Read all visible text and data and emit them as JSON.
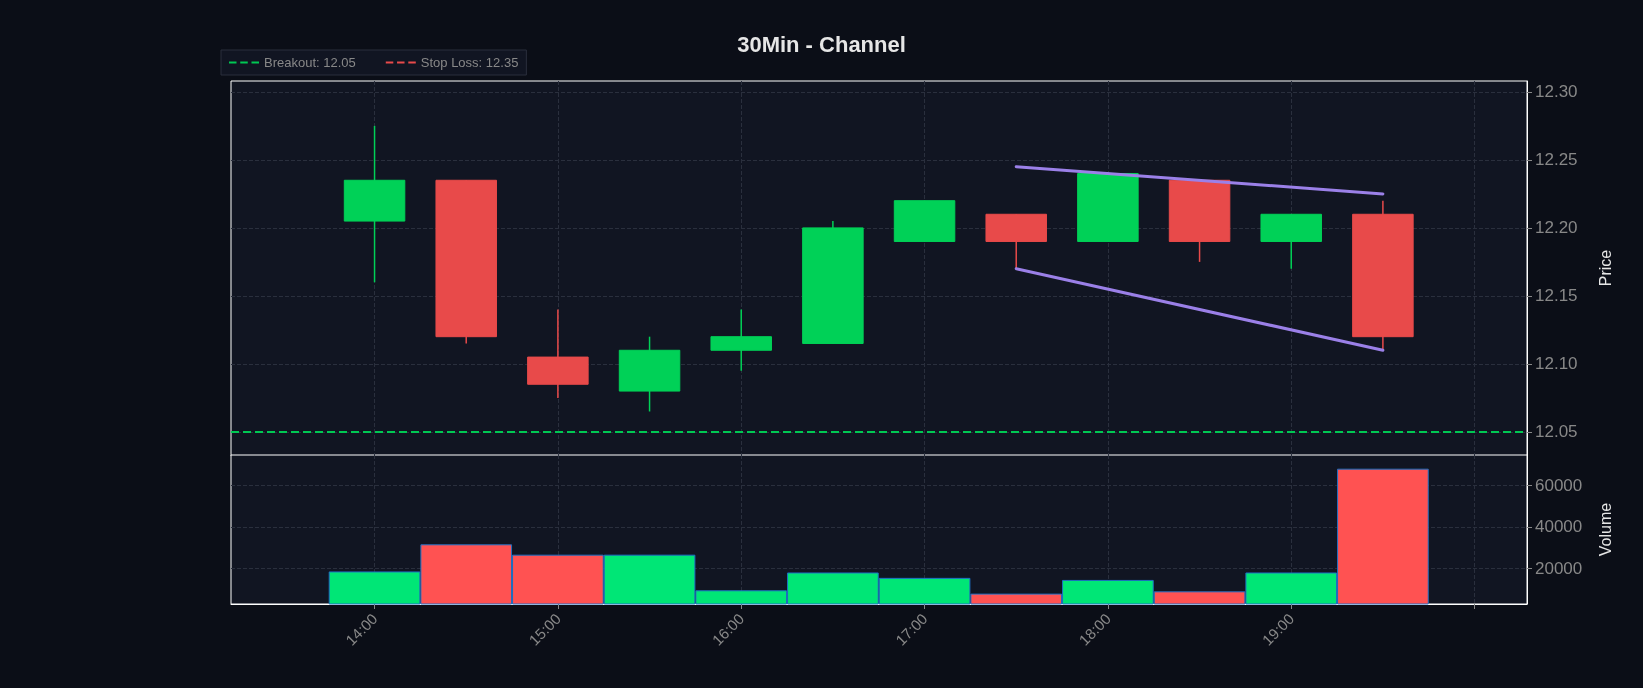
{
  "chart_data": [
    {
      "type": "candlestick",
      "title": "30Min - Channel",
      "ylabel": "Price",
      "x": [
        14,
        14.5,
        15,
        15.5,
        16,
        16.5,
        17,
        17.5,
        18,
        18.5,
        19,
        19.5
      ],
      "ohlc": [
        [
          12.205,
          12.275,
          12.16,
          12.235
        ],
        [
          12.235,
          12.235,
          12.115,
          12.12
        ],
        [
          12.105,
          12.14,
          12.075,
          12.085
        ],
        [
          12.08,
          12.12,
          12.065,
          12.11
        ],
        [
          12.11,
          12.14,
          12.095,
          12.12
        ],
        [
          12.115,
          12.205,
          12.115,
          12.2
        ],
        [
          12.19,
          12.22,
          12.19,
          12.22
        ],
        [
          12.21,
          12.21,
          12.17,
          12.19
        ],
        [
          12.19,
          12.24,
          12.19,
          12.24
        ],
        [
          12.235,
          12.235,
          12.175,
          12.19
        ],
        [
          12.19,
          12.21,
          12.17,
          12.21
        ],
        [
          12.21,
          12.22,
          12.11,
          12.12
        ]
      ],
      "colors": [
        "#00d157",
        "#e84a4a",
        "#e84a4a",
        "#00d157",
        "#00d157",
        "#00d157",
        "#00d157",
        "#e84a4a",
        "#00d157",
        "#e84a4a",
        "#00d157",
        "#e84a4a"
      ],
      "series": [
        {
          "type": "line",
          "values": [
            null,
            null,
            null,
            null,
            null,
            null,
            null,
            12.245,
            null,
            null,
            null,
            12.225
          ],
          "color": "#9b80e8"
        },
        {
          "type": "line",
          "values": [
            null,
            null,
            null,
            null,
            null,
            null,
            null,
            12.17,
            null,
            null,
            null,
            12.11
          ],
          "color": "#9b80e8"
        }
      ],
      "ref_lines": [
        {
          "axis": "y",
          "value": 12.05,
          "label": "Breakout: 12.05",
          "color": "#00c853",
          "line_style": "dashed"
        }
      ],
      "annotations": [
        "Stop Loss: 12.35"
      ],
      "xlim": [
        13.217,
        20.286
      ],
      "xticks": [
        14,
        15,
        16,
        17,
        18,
        19,
        20
      ],
      "ylim": [
        12.033,
        12.308
      ],
      "yticks": [
        12.05,
        {
          "value": 12.1,
          "label": "12.10"
        },
        12.15,
        {
          "value": 12.2,
          "label": "12.20"
        },
        12.25,
        {
          "value": 12.3,
          "label": "12.30"
        }
      ],
      "grid": true,
      "legend": "top left",
      "tick_labels": "y"
    },
    {
      "type": "bar",
      "ylabel": "Volume",
      "x": [
        14,
        14.5,
        15,
        15.5,
        16,
        16.5,
        17,
        17.5,
        18,
        18.5,
        19,
        19.5
      ],
      "values": [
        18500,
        31600,
        26600,
        26600,
        9400,
        18000,
        15400,
        7800,
        14400,
        8900,
        18000,
        68100
      ],
      "colors": [
        "#00e676",
        "#ff5252",
        "#ff5252",
        "#00e676",
        "#00e676",
        "#00e676",
        "#00e676",
        "#ff5252",
        "#00e676",
        "#ff5252",
        "#00e676",
        "#ff5252"
      ],
      "xlim": [
        13.217,
        20.286
      ],
      "xticks": [
        {
          "value": 14,
          "label": "14:00"
        },
        {
          "value": 15,
          "label": "15:00"
        },
        {
          "value": 16,
          "label": "16:00"
        },
        {
          "value": 17,
          "label": "17:00"
        },
        {
          "value": 18,
          "label": "18:00"
        },
        {
          "value": 19,
          "label": "19:00"
        },
        {
          "value": 20,
          "label": null
        }
      ],
      "ylim": [
        2785,
        74700
      ],
      "yticks": [
        20000,
        40000,
        60000
      ],
      "grid": true
    }
  ]
}
